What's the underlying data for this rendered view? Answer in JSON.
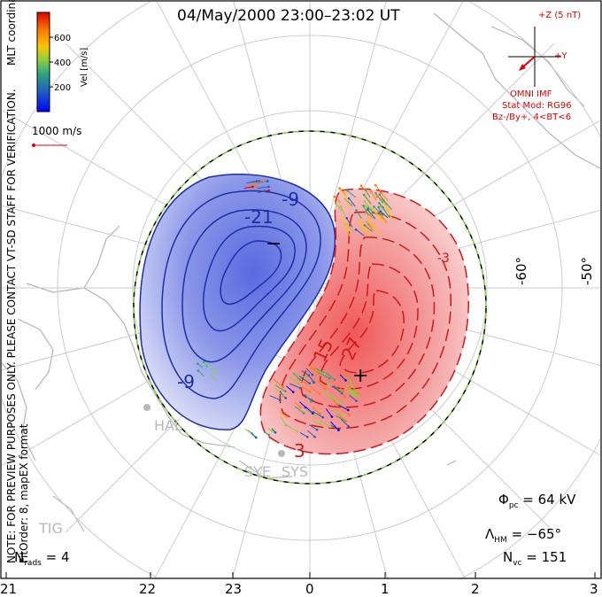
{
  "title": "04/May/2000 23:00–23:02 UT",
  "coords_label": "MLT coordinates",
  "colorbar": {
    "label": "Vel [m/s]",
    "ticks": [
      "600",
      "400",
      "200"
    ],
    "colors": [
      "#e00000",
      "#ff7a00",
      "#ffc400",
      "#8bd13c",
      "#2fa27e",
      "#1d5fc2",
      "#0000ff"
    ]
  },
  "velocity_scale": "1000 m/s",
  "imf": {
    "z_label": "+Z (5 nT)",
    "y_label": "+Y",
    "source": "OMNI IMF",
    "stat_mod": "Stat Mod: RG96",
    "condition": "Bz-/By+, 4<BT<6"
  },
  "lat_labels": [
    "-60°",
    "-50°"
  ],
  "contour_labels": [
    "-9",
    "-21",
    "-9",
    "15",
    "27",
    "-3",
    "3",
    "3"
  ],
  "markers": [
    "−",
    "+"
  ],
  "stations": [
    "HAL",
    "SYE",
    "SYS",
    "TIG"
  ],
  "notes": {
    "preview": "NOTE: FOR PREVIEW PURPOSES ONLY. PLEASE CONTACT VT-SD STAFF FOR VERIFICATION.",
    "fit": "FitOrder: 8, mapEX format"
  },
  "stats": {
    "phi_pc": "64 kV",
    "lambda_hm": "−65°",
    "n_vc": "151",
    "n_rads": "4"
  },
  "x_ticks": [
    "21",
    "22",
    "23",
    "0",
    "1",
    "2",
    "3"
  ],
  "colors": {
    "negative_fill": "#6f7fe0",
    "positive_fill": "#f07070",
    "negative_line": "#1c2fa8",
    "positive_line": "#d01818",
    "hmb": "#7ac843",
    "grid": "#c8c8c8"
  }
}
